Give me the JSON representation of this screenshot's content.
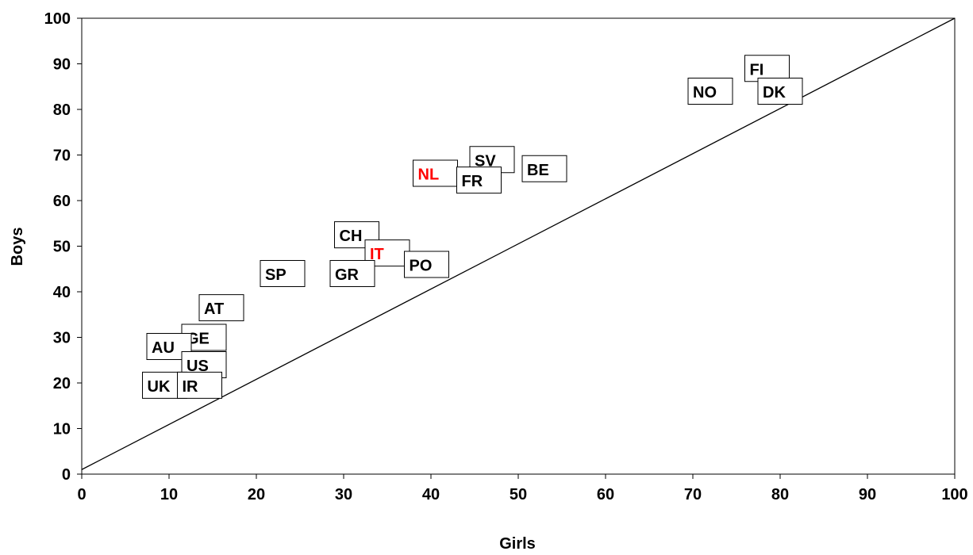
{
  "chart_data": {
    "type": "scatter",
    "title": "",
    "xlabel": "Girls",
    "ylabel": "Boys",
    "xlim": [
      0,
      100
    ],
    "ylim": [
      0,
      100
    ],
    "xticks": [
      "0",
      "10",
      "20",
      "30",
      "40",
      "50",
      "60",
      "70",
      "80",
      "90",
      "100"
    ],
    "yticks": [
      "0",
      "10",
      "20",
      "30",
      "40",
      "50",
      "60",
      "70",
      "80",
      "90",
      "100"
    ],
    "grid": false,
    "legend": "none",
    "reference_line": {
      "from": [
        0,
        1
      ],
      "to": [
        100,
        100
      ]
    },
    "highlight_color": "#ff0000",
    "default_color": "#000000",
    "points": [
      {
        "label": "FI",
        "x": 78.5,
        "y": 89.0,
        "highlight": false
      },
      {
        "label": "NO",
        "x": 72.0,
        "y": 84.0,
        "highlight": false
      },
      {
        "label": "DK",
        "x": 80.0,
        "y": 84.0,
        "highlight": false
      },
      {
        "label": "SV",
        "x": 47.0,
        "y": 69.0,
        "highlight": false
      },
      {
        "label": "BE",
        "x": 53.0,
        "y": 67.0,
        "highlight": false
      },
      {
        "label": "NL",
        "x": 40.5,
        "y": 66.0,
        "highlight": true
      },
      {
        "label": "FR",
        "x": 45.5,
        "y": 64.5,
        "highlight": false
      },
      {
        "label": "CH",
        "x": 31.5,
        "y": 52.5,
        "highlight": false
      },
      {
        "label": "IT",
        "x": 35.0,
        "y": 48.5,
        "highlight": true
      },
      {
        "label": "PO",
        "x": 39.5,
        "y": 46.0,
        "highlight": false
      },
      {
        "label": "SP",
        "x": 23.0,
        "y": 44.0,
        "highlight": false
      },
      {
        "label": "GR",
        "x": 31.0,
        "y": 44.0,
        "highlight": false
      },
      {
        "label": "AT",
        "x": 16.0,
        "y": 36.5,
        "highlight": false
      },
      {
        "label": "GE",
        "x": 14.0,
        "y": 30.0,
        "highlight": false
      },
      {
        "label": "AU",
        "x": 10.0,
        "y": 28.0,
        "highlight": false
      },
      {
        "label": "US",
        "x": 14.0,
        "y": 24.0,
        "highlight": false
      },
      {
        "label": "UK",
        "x": 9.5,
        "y": 19.5,
        "highlight": false
      },
      {
        "label": "IR",
        "x": 13.5,
        "y": 19.5,
        "highlight": false
      }
    ]
  }
}
